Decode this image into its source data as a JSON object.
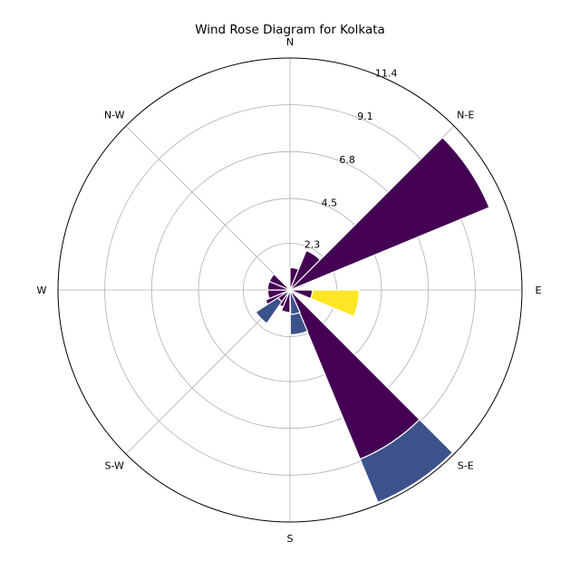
{
  "chart_data": {
    "type": "wind-rose",
    "title": "Wind Rose Diagram for Kolkata",
    "direction_labels": [
      {
        "label": "N",
        "angle": 0
      },
      {
        "label": "N-E",
        "angle": 45
      },
      {
        "label": "E",
        "angle": 90
      },
      {
        "label": "S-E",
        "angle": 135
      },
      {
        "label": "S",
        "angle": 180
      },
      {
        "label": "S-W",
        "angle": 225
      },
      {
        "label": "W",
        "angle": 270
      },
      {
        "label": "N-W",
        "angle": 315
      }
    ],
    "radial_ticks": [
      {
        "value": 2.3,
        "label": "2.3"
      },
      {
        "value": 4.5,
        "label": "4.5"
      },
      {
        "value": 6.8,
        "label": "6.8"
      },
      {
        "value": 9.1,
        "label": "9.1"
      },
      {
        "value": 11.4,
        "label": "11.4"
      }
    ],
    "rmax": 11.4,
    "sector_width_deg": 22.5,
    "bin_colors": [
      "#440154",
      "#3b528b",
      "#fde725"
    ],
    "sectors": [
      {
        "direction": 11.25,
        "stacks": [
          1.1
        ]
      },
      {
        "direction": 33.75,
        "stacks": [
          2.1
        ]
      },
      {
        "direction": 56.25,
        "stacks": [
          10.6
        ]
      },
      {
        "direction": 101.25,
        "stacks": [
          1.1,
          0,
          2.3
        ]
      },
      {
        "direction": 146.25,
        "stacks": [
          9.0,
          2.3
        ]
      },
      {
        "direction": 168.25,
        "stacks": [
          1.1,
          1.1
        ]
      },
      {
        "direction": 191.25,
        "stacks": [
          1.1
        ]
      },
      {
        "direction": 213.75,
        "stacks": [
          0.9
        ]
      },
      {
        "direction": 236.25,
        "stacks": [
          1.3
        ]
      },
      {
        "direction": 258.75,
        "stacks": [
          1.1
        ]
      },
      {
        "direction": 281.25,
        "stacks": [
          1.1
        ]
      },
      {
        "direction": 303.75,
        "stacks": [
          1.1
        ]
      },
      {
        "direction": 226.0,
        "stacks": [
          0.7,
          1.3
        ]
      },
      {
        "direction": 167.0,
        "stacks": [
          0.1,
          1.1
        ]
      }
    ]
  }
}
